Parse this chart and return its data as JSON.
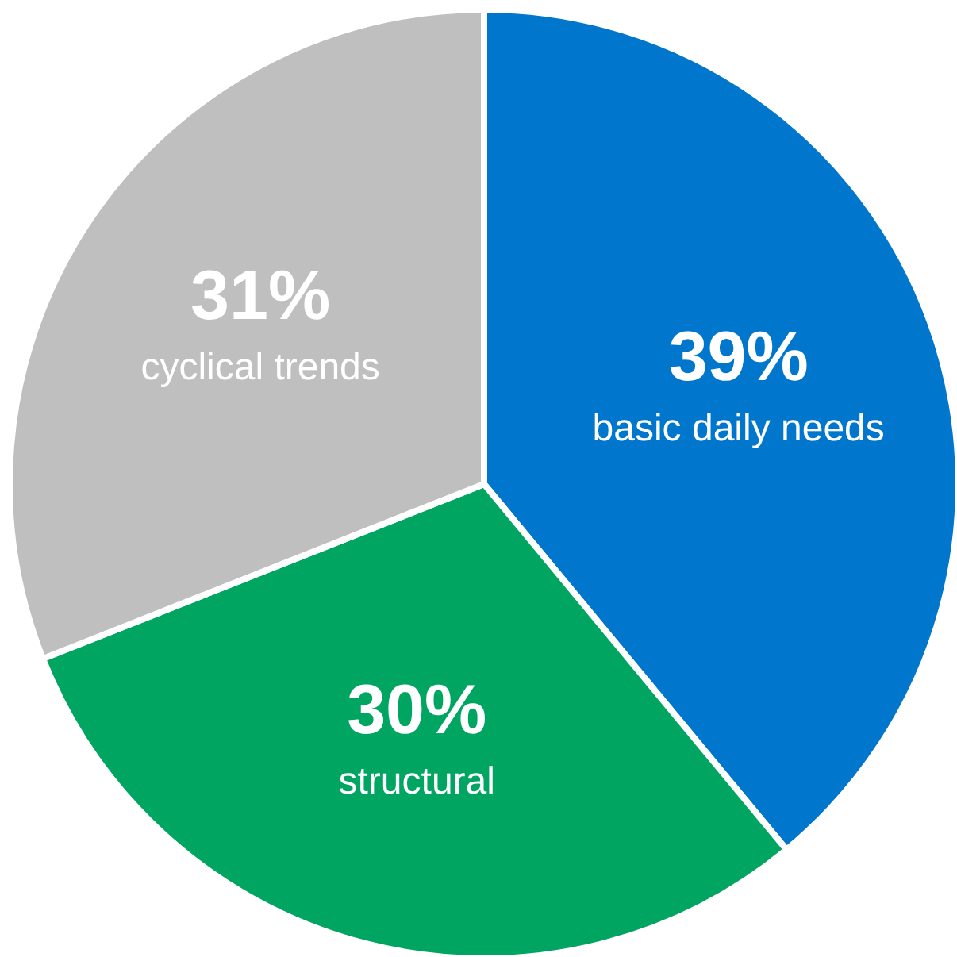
{
  "chart_data": {
    "type": "pie",
    "categories": [
      "basic daily needs",
      "structural",
      "cyclical trends"
    ],
    "values": [
      39,
      30,
      31
    ],
    "colors": [
      "#0077cc",
      "#00a562",
      "#bfbfbf"
    ],
    "value_labels": [
      "39%",
      "30%",
      "31%"
    ]
  }
}
